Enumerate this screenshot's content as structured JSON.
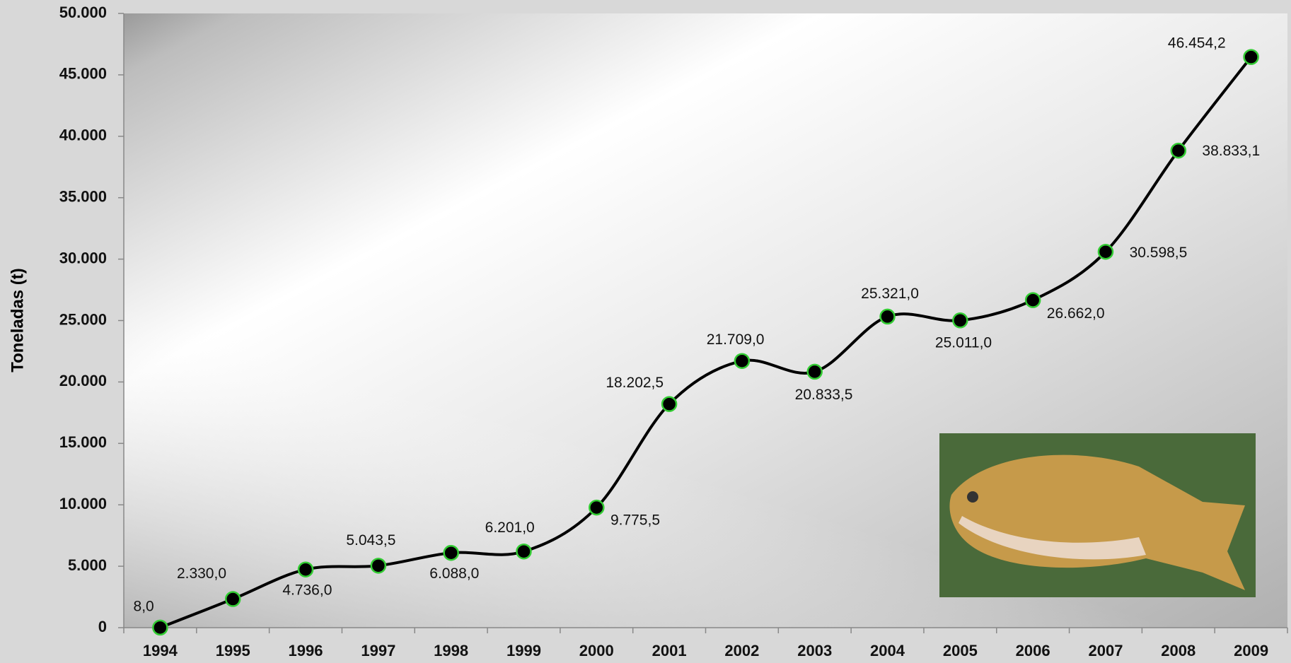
{
  "chart_data": {
    "type": "line",
    "y_label": "Toneladas (t)",
    "categories": [
      "1994",
      "1995",
      "1996",
      "1997",
      "1998",
      "1999",
      "2000",
      "2001",
      "2002",
      "2003",
      "2004",
      "2005",
      "2006",
      "2007",
      "2008",
      "2009"
    ],
    "values": [
      8,
      2330,
      4736,
      5043.5,
      6088,
      6201,
      9775.5,
      18202.5,
      21709,
      20833.5,
      25321,
      25011,
      26662,
      30598.5,
      38833.1,
      46454.2
    ],
    "value_labels": [
      "8,0",
      "2.330,0",
      "4.736,0",
      "5.043,5",
      "6.088,0",
      "6.201,0",
      "9.775,5",
      "18.202,5",
      "21.709,0",
      "20.833,5",
      "25.321,0",
      "25.011,0",
      "26.662,0",
      "30.598,5",
      "38.833,1",
      "46.454,2"
    ],
    "color": "#000000",
    "marker_edge_color": "#33cc33",
    "ylim": [
      0,
      50000
    ],
    "yticks": [
      0,
      {
        "value": 5000,
        "label": "5.000"
      },
      {
        "value": 10000,
        "label": "10.000"
      },
      {
        "value": 15000,
        "label": "15.000"
      },
      {
        "value": 20000,
        "label": "20.000"
      },
      {
        "value": 25000,
        "label": "25.000"
      },
      {
        "value": 30000,
        "label": "30.000"
      },
      {
        "value": 35000,
        "label": "35.000"
      },
      {
        "value": 40000,
        "label": "40.000"
      },
      {
        "value": 45000,
        "label": "45.000"
      },
      {
        "value": 50000,
        "label": "50.000"
      }
    ],
    "grid": false,
    "smooth": true
  }
}
